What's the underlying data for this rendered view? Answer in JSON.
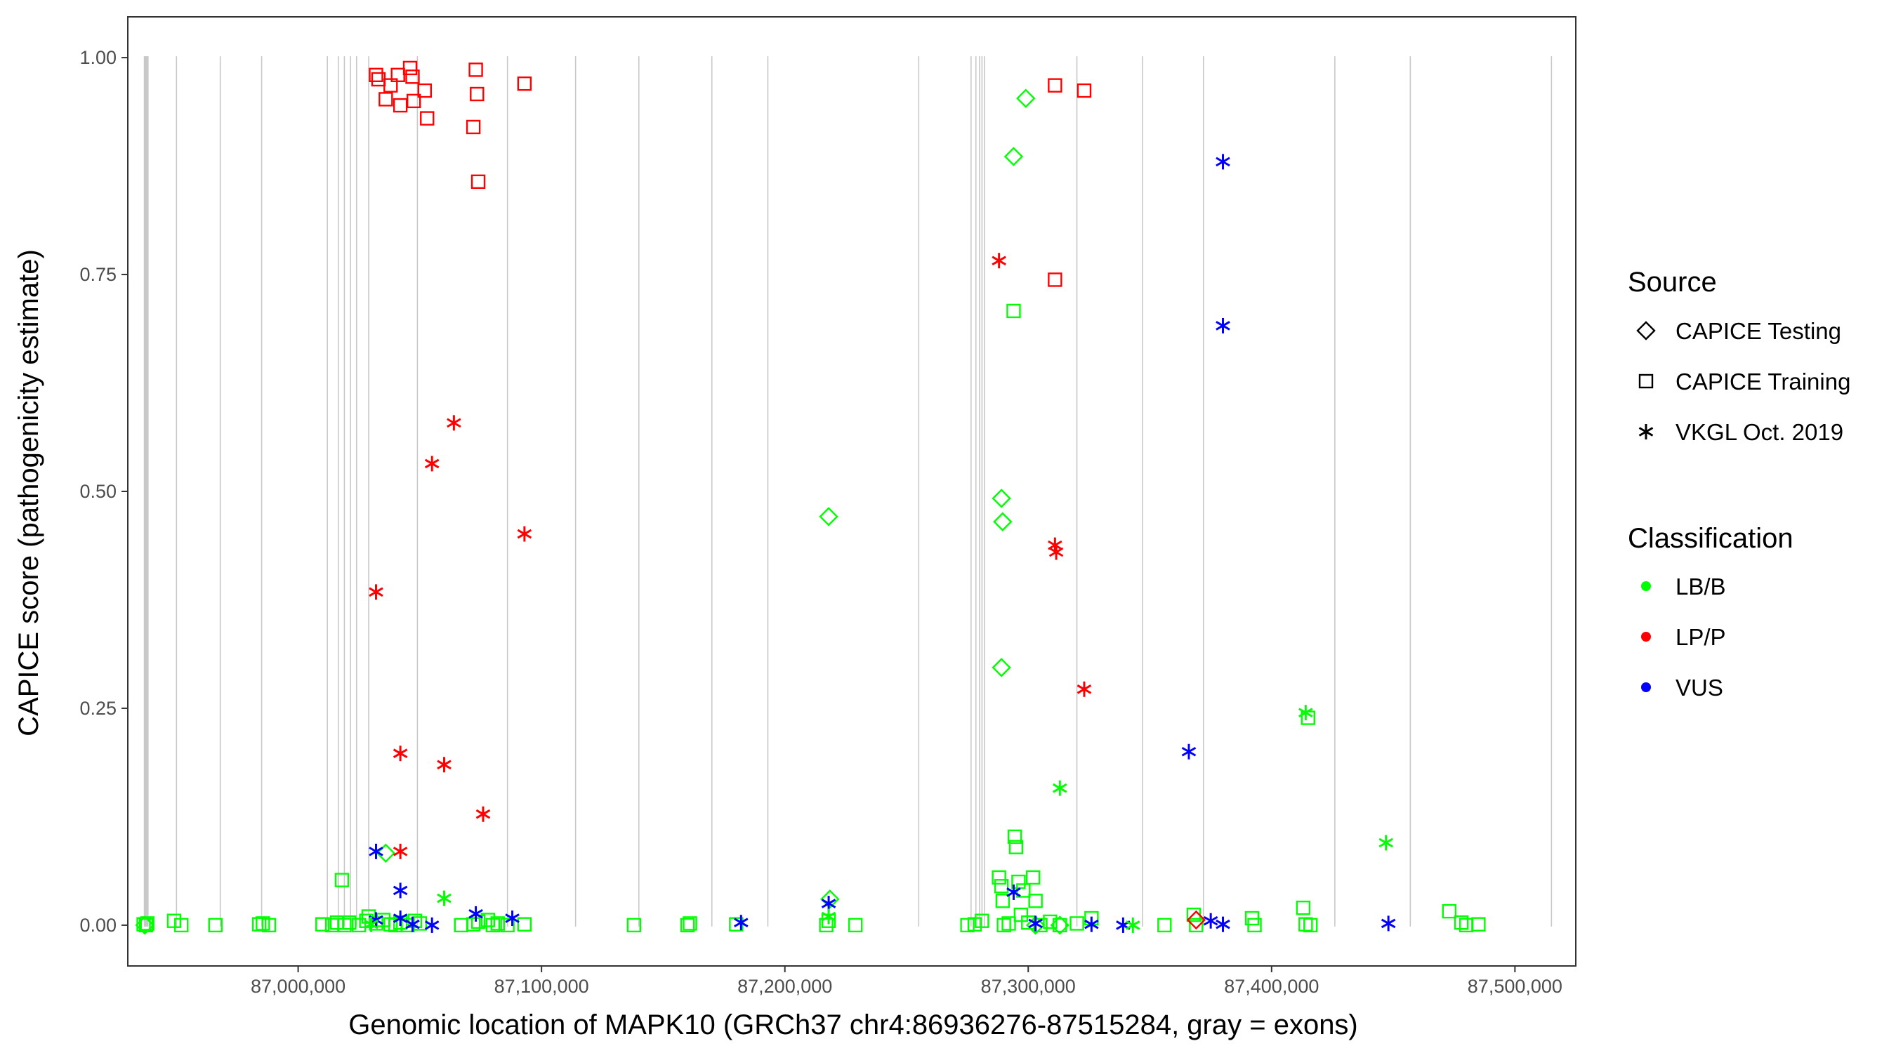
{
  "chart_data": {
    "type": "scatter",
    "title": "",
    "xlabel": "Genomic location of MAPK10 (GRCh37 chr4:86936276-87515284, gray = exons)",
    "ylabel": "CAPICE score (pathogenicity estimate)",
    "xlim": [
      86930000,
      87525000
    ],
    "ylim": [
      -0.047,
      1.047
    ],
    "x_ticks": [
      87000000,
      87100000,
      87200000,
      87300000,
      87400000,
      87500000
    ],
    "x_tick_labels": [
      "87,000,000",
      "87,100,000",
      "87,200,000",
      "87,300,000",
      "87,400,000",
      "87,500,000"
    ],
    "y_ticks": [
      0,
      0.25,
      0.5,
      0.75,
      1.0
    ],
    "y_tick_labels": [
      "0.00",
      "0.25",
      "0.50",
      "0.75",
      "1.00"
    ],
    "grid": false,
    "exons": [
      86936800,
      86937100,
      86937400,
      86937700,
      86938000,
      86938300,
      86950000,
      86968000,
      86985000,
      87012000,
      87016500,
      87019000,
      87021500,
      87024000,
      87029000,
      87049000,
      87086000,
      87114000,
      87140000,
      87170000,
      87193000,
      87255000,
      87276500,
      87278500,
      87280000,
      87281000,
      87282000,
      87320000,
      87347000,
      87372000,
      87426000,
      87457000,
      87515000
    ],
    "legend": {
      "placement": "right",
      "source_title": "Source",
      "source_entries": [
        {
          "label": "CAPICE Testing",
          "shape": "diamond"
        },
        {
          "label": "CAPICE Training",
          "shape": "square"
        },
        {
          "label": "VKGL Oct. 2019",
          "shape": "asterisk"
        }
      ],
      "class_title": "Classification",
      "class_entries": [
        {
          "label": "LB/B",
          "color": "#00ff00"
        },
        {
          "label": "LP/P",
          "color": "#ff0000"
        },
        {
          "label": "VUS",
          "color": "#0000ff"
        }
      ]
    },
    "colors": {
      "LB/B": "#00ff00",
      "LP/P": "#ff0000",
      "VUS": "#0000ff"
    },
    "series": [
      {
        "source": "CAPICE Training",
        "classification": "LP/P",
        "points": [
          [
            87032000,
            0.98
          ],
          [
            87033000,
            0.975
          ],
          [
            87036000,
            0.952
          ],
          [
            87038000,
            0.968
          ],
          [
            87041000,
            0.98
          ],
          [
            87042000,
            0.945
          ],
          [
            87046000,
            0.988
          ],
          [
            87047000,
            0.978
          ],
          [
            87047500,
            0.95
          ],
          [
            87052000,
            0.962
          ],
          [
            87053000,
            0.93
          ],
          [
            87072000,
            0.92
          ],
          [
            87073000,
            0.986
          ],
          [
            87073500,
            0.958
          ],
          [
            87074000,
            0.857
          ],
          [
            87093000,
            0.97
          ],
          [
            87311000,
            0.968
          ],
          [
            87323000,
            0.962
          ],
          [
            87311000,
            0.744
          ]
        ]
      },
      {
        "source": "CAPICE Training",
        "classification": "LB/B",
        "points": [
          [
            86936500,
            0.001
          ],
          [
            86937500,
            0.0
          ],
          [
            86938000,
            0.002
          ],
          [
            86949000,
            0.005
          ],
          [
            86952000,
            0.0
          ],
          [
            86966000,
            0.0
          ],
          [
            86984000,
            0.001
          ],
          [
            86985500,
            0.002
          ],
          [
            86988000,
            0.0
          ],
          [
            87010000,
            0.001
          ],
          [
            87014000,
            0.0
          ],
          [
            87016000,
            0.003
          ],
          [
            87018000,
            0.052
          ],
          [
            87019000,
            0.0
          ],
          [
            87021000,
            0.003
          ],
          [
            87025000,
            0.0
          ],
          [
            87028000,
            0.005
          ],
          [
            87029000,
            0.01
          ],
          [
            87032000,
            0.002
          ],
          [
            87035000,
            0.006
          ],
          [
            87038000,
            0.001
          ],
          [
            87040000,
            0.0
          ],
          [
            87042000,
            0.003
          ],
          [
            87045000,
            0.0
          ],
          [
            87048000,
            0.005
          ],
          [
            87050000,
            0.002
          ],
          [
            87067000,
            0.0
          ],
          [
            87072000,
            0.001
          ],
          [
            87074000,
            0.004
          ],
          [
            87078000,
            0.006
          ],
          [
            87080000,
            0.0
          ],
          [
            87082000,
            0.002
          ],
          [
            87086000,
            0.0
          ],
          [
            87093000,
            0.001
          ],
          [
            87138000,
            0.0
          ],
          [
            87160000,
            0.0
          ],
          [
            87161000,
            0.002
          ],
          [
            87180000,
            0.001
          ],
          [
            87217000,
            0.0
          ],
          [
            87218000,
            0.005
          ],
          [
            87229000,
            0.0
          ],
          [
            87275000,
            0.0
          ],
          [
            87278000,
            0.001
          ],
          [
            87281000,
            0.005
          ],
          [
            87288000,
            0.055
          ],
          [
            87289000,
            0.045
          ],
          [
            87289500,
            0.028
          ],
          [
            87290000,
            0.0
          ],
          [
            87292000,
            0.002
          ],
          [
            87294000,
            0.708
          ],
          [
            87294500,
            0.102
          ],
          [
            87295000,
            0.09
          ],
          [
            87296000,
            0.05
          ],
          [
            87297000,
            0.012
          ],
          [
            87298000,
            0.04
          ],
          [
            87300000,
            0.003
          ],
          [
            87302000,
            0.055
          ],
          [
            87303000,
            0.028
          ],
          [
            87305000,
            0.0
          ],
          [
            87309000,
            0.004
          ],
          [
            87313000,
            0.0
          ],
          [
            87320000,
            0.002
          ],
          [
            87326000,
            0.008
          ],
          [
            87356000,
            0.0
          ],
          [
            87368000,
            0.012
          ],
          [
            87369000,
            0.0
          ],
          [
            87392000,
            0.008
          ],
          [
            87393000,
            0.0
          ],
          [
            87413000,
            0.02
          ],
          [
            87414000,
            0.001
          ],
          [
            87415000,
            0.239
          ],
          [
            87416000,
            0.0
          ],
          [
            87473000,
            0.016
          ],
          [
            87478000,
            0.003
          ],
          [
            87480000,
            0.0
          ],
          [
            87485000,
            0.001
          ]
        ]
      },
      {
        "source": "CAPICE Testing",
        "classification": "LB/B",
        "points": [
          [
            86937000,
            0.0
          ],
          [
            87036000,
            0.083
          ],
          [
            87218000,
            0.471
          ],
          [
            87218500,
            0.03
          ],
          [
            87289000,
            0.492
          ],
          [
            87289500,
            0.465
          ],
          [
            87289000,
            0.297
          ],
          [
            87294000,
            0.886
          ],
          [
            87299000,
            0.953
          ],
          [
            87303000,
            0.0
          ],
          [
            87313000,
            0.0
          ]
        ]
      },
      {
        "source": "CAPICE Testing",
        "classification": "LP/P",
        "points": [
          [
            87369000,
            0.006
          ]
        ]
      },
      {
        "source": "VKGL Oct. 2019",
        "classification": "LP/P",
        "points": [
          [
            87288000,
            0.766
          ],
          [
            87064000,
            0.579
          ],
          [
            87055000,
            0.532
          ],
          [
            87093000,
            0.451
          ],
          [
            87311000,
            0.438
          ],
          [
            87311500,
            0.43
          ],
          [
            87032000,
            0.384
          ],
          [
            87323000,
            0.272
          ],
          [
            87042000,
            0.198
          ],
          [
            87060000,
            0.185
          ],
          [
            87076000,
            0.128
          ],
          [
            87042000,
            0.085
          ]
        ]
      },
      {
        "source": "VKGL Oct. 2019",
        "classification": "VUS",
        "points": [
          [
            87380000,
            0.88
          ],
          [
            87380000,
            0.691
          ],
          [
            87366000,
            0.2
          ],
          [
            87032000,
            0.085
          ],
          [
            87042000,
            0.04
          ],
          [
            87294000,
            0.038
          ],
          [
            87218000,
            0.025
          ],
          [
            87073000,
            0.013
          ],
          [
            87088000,
            0.008
          ],
          [
            87042000,
            0.008
          ],
          [
            87032000,
            0.006
          ],
          [
            87375000,
            0.005
          ],
          [
            87380000,
            0.001
          ],
          [
            87047000,
            0.001
          ],
          [
            87055000,
            0.0
          ],
          [
            87182000,
            0.003
          ],
          [
            87303000,
            0.002
          ],
          [
            87326000,
            0.001
          ],
          [
            87339000,
            0.0
          ],
          [
            87448000,
            0.002
          ]
        ]
      },
      {
        "source": "VKGL Oct. 2019",
        "classification": "LB/B",
        "points": [
          [
            87060000,
            0.031
          ],
          [
            87313000,
            0.158
          ],
          [
            87414000,
            0.245
          ],
          [
            87447000,
            0.095
          ],
          [
            87343000,
            0.0
          ],
          [
            87218000,
            0.01
          ],
          [
            87030000,
            0.001
          ]
        ]
      }
    ]
  }
}
